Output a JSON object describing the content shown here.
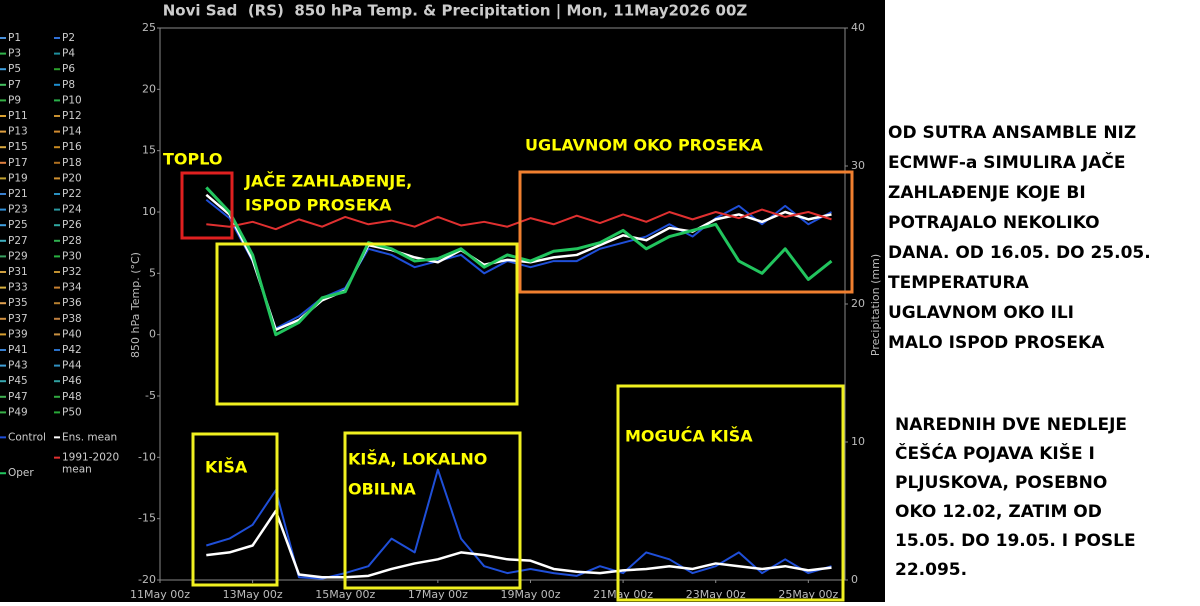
{
  "chart_data": {
    "type": "line",
    "title": "Novi Sad  (RS)  850 hPa Temp. & Precipitation | Mon, 11May2026 00Z",
    "ylabel": "850 hPa Temp. (°C)",
    "y2label": "Precipitation (mm)",
    "grid": false,
    "xlim": [
      0,
      355
    ],
    "xticks": [
      {
        "value": 0,
        "label": "11May 00z"
      },
      {
        "value": 48,
        "label": "13May 00z"
      },
      {
        "value": 96,
        "label": "15May 00z"
      },
      {
        "value": 144,
        "label": "17May 00z"
      },
      {
        "value": 192,
        "label": "19May 00z"
      },
      {
        "value": 240,
        "label": "21May 00z"
      },
      {
        "value": 288,
        "label": "23May 00z"
      },
      {
        "value": 336,
        "label": "25May 00z"
      }
    ],
    "ylim": [
      -20,
      25
    ],
    "yticks": [
      -20,
      -15,
      -10,
      -5,
      0,
      5,
      10,
      15,
      20,
      25
    ],
    "y2lim": [
      0,
      40
    ],
    "y2ticks": [
      0,
      10,
      20,
      30,
      40
    ],
    "x": [
      24,
      36,
      48,
      60,
      72,
      84,
      96,
      108,
      120,
      132,
      144,
      156,
      168,
      180,
      192,
      204,
      216,
      228,
      240,
      252,
      264,
      276,
      288,
      300,
      312,
      324,
      336,
      348
    ],
    "members": [
      {
        "name": "P1",
        "color": "#4a90d9"
      },
      {
        "name": "P2",
        "color": "#2f6fd6"
      },
      {
        "name": "P3",
        "color": "#31b44b"
      },
      {
        "name": "P4",
        "color": "#1e8f9e"
      },
      {
        "name": "P5",
        "color": "#3fa0e0"
      },
      {
        "name": "P6",
        "color": "#2ca02c"
      },
      {
        "name": "P7",
        "color": "#44c060"
      },
      {
        "name": "P8",
        "color": "#1f8fd0"
      },
      {
        "name": "P9",
        "color": "#35b045"
      },
      {
        "name": "P10",
        "color": "#2ab04a"
      },
      {
        "name": "P11",
        "color": "#d9a030"
      },
      {
        "name": "P12",
        "color": "#c89030"
      },
      {
        "name": "P13",
        "color": "#e0a040"
      },
      {
        "name": "P14",
        "color": "#d08a30"
      },
      {
        "name": "P15",
        "color": "#d9a840"
      },
      {
        "name": "P16",
        "color": "#c88a20"
      },
      {
        "name": "P17",
        "color": "#e08040"
      },
      {
        "name": "P18",
        "color": "#b07020"
      },
      {
        "name": "P19",
        "color": "#c0a030"
      },
      {
        "name": "P20",
        "color": "#d09030"
      },
      {
        "name": "P21",
        "color": "#3a80d0"
      },
      {
        "name": "P22",
        "color": "#2a90c0"
      },
      {
        "name": "P23",
        "color": "#3090d8"
      },
      {
        "name": "P24",
        "color": "#2a98a0"
      },
      {
        "name": "P25",
        "color": "#40a0e0"
      },
      {
        "name": "P26",
        "color": "#30a8a0"
      },
      {
        "name": "P27",
        "color": "#40b0c0"
      },
      {
        "name": "P28",
        "color": "#30b050"
      },
      {
        "name": "P29",
        "color": "#38a060"
      },
      {
        "name": "P30",
        "color": "#28b040"
      },
      {
        "name": "P31",
        "color": "#d0a040"
      },
      {
        "name": "P32",
        "color": "#c09030"
      },
      {
        "name": "P33",
        "color": "#d8b040"
      },
      {
        "name": "P34",
        "color": "#c88030"
      },
      {
        "name": "P35",
        "color": "#e0a050"
      },
      {
        "name": "P36",
        "color": "#b88030"
      },
      {
        "name": "P37",
        "color": "#d09040"
      },
      {
        "name": "P38",
        "color": "#c08040"
      },
      {
        "name": "P39",
        "color": "#d8a030"
      },
      {
        "name": "P40",
        "color": "#c89040"
      },
      {
        "name": "P41",
        "color": "#3880d0"
      },
      {
        "name": "P42",
        "color": "#2a70c8"
      },
      {
        "name": "P43",
        "color": "#40a0d8"
      },
      {
        "name": "P44",
        "color": "#3090c0"
      },
      {
        "name": "P45",
        "color": "#38a8b0"
      },
      {
        "name": "P46",
        "color": "#30a0a0"
      },
      {
        "name": "P47",
        "color": "#40b050"
      },
      {
        "name": "P48",
        "color": "#30a840"
      },
      {
        "name": "P49",
        "color": "#38b048"
      },
      {
        "name": "P50",
        "color": "#28a838"
      }
    ],
    "series": [
      {
        "name": "Control",
        "color": "#1f4fd8",
        "values": [
          11.0,
          9.5,
          6.0,
          0.5,
          1.5,
          3.0,
          3.8,
          7.0,
          6.5,
          5.5,
          6.0,
          6.5,
          5.0,
          6.0,
          5.5,
          6.0,
          6.0,
          7.0,
          7.5,
          8.0,
          9.0,
          8.0,
          9.5,
          10.5,
          9.0,
          10.5,
          9.0,
          10.0
        ]
      },
      {
        "name": "Ens. mean",
        "color": "#ffffff",
        "values": [
          11.4,
          9.8,
          6.1,
          0.4,
          1.2,
          2.8,
          3.6,
          7.3,
          6.9,
          6.3,
          5.9,
          6.9,
          5.7,
          6.1,
          5.9,
          6.3,
          6.5,
          7.3,
          8.1,
          7.7,
          8.7,
          8.4,
          9.4,
          9.8,
          9.2,
          10.0,
          9.4,
          9.8
        ]
      },
      {
        "name": "1991-2020 mean",
        "color": "#e03030",
        "values": [
          9.0,
          8.8,
          9.2,
          8.6,
          9.4,
          8.8,
          9.6,
          9.0,
          9.3,
          8.8,
          9.6,
          8.9,
          9.2,
          8.8,
          9.5,
          9.0,
          9.7,
          9.1,
          9.8,
          9.2,
          10.0,
          9.4,
          10.0,
          9.5,
          10.2,
          9.6,
          10.0,
          9.4
        ]
      },
      {
        "name": "Oper",
        "color": "#22c55e",
        "values": [
          12.0,
          10.0,
          6.5,
          0.0,
          1.0,
          3.0,
          3.5,
          7.5,
          7.0,
          6.0,
          6.2,
          7.0,
          5.5,
          6.5,
          6.0,
          6.8,
          7.0,
          7.5,
          8.5,
          7.0,
          8.0,
          8.5,
          9.0,
          6.0,
          5.0,
          7.0,
          4.5,
          6.0
        ]
      },
      {
        "axis": "y2",
        "color": "#1f4fd8",
        "values": [
          2.5,
          3.0,
          4.0,
          6.5,
          0.2,
          0.1,
          0.5,
          1.0,
          3.0,
          2.0,
          8.0,
          3.0,
          1.0,
          0.5,
          0.8,
          0.5,
          0.3,
          1.0,
          0.5,
          2.0,
          1.5,
          0.5,
          1.0,
          2.0,
          0.5,
          1.5,
          0.5,
          1.0
        ]
      },
      {
        "axis": "y2",
        "color": "#ffffff",
        "values": [
          1.8,
          2.0,
          2.5,
          5.0,
          0.4,
          0.2,
          0.2,
          0.3,
          0.8,
          1.2,
          1.5,
          2.0,
          1.8,
          1.5,
          1.4,
          0.8,
          0.6,
          0.5,
          0.7,
          0.8,
          1.0,
          0.8,
          1.2,
          1.0,
          0.8,
          1.0,
          0.7,
          0.9
        ]
      }
    ]
  },
  "annotations": {
    "toplo": "TOPLO",
    "cooling": [
      "JAČE ZAHLAĐENJE,",
      "ISPOD PROSEKA"
    ],
    "average": "UGLAVNOM OKO PROSEKA",
    "rain1": "KIŠA",
    "rain2": [
      "KIŠA, LOKALNO",
      "OBILNA"
    ],
    "rain3": "MOGUĆA KIŠA"
  },
  "notes": {
    "paragraph1": [
      "OD SUTRA ANSAMBLE NIZ",
      "ECMWF-a SIMULIRA JAČE",
      "ZAHLAĐENJE KOJE BI",
      "POTRAJALO NEKOLIKO",
      "DANA. OD 16.05. DO 25.05.",
      "TEMPERATURA",
      "UGLAVNOM OKO ILI",
      "MALO ISPOD PROSEKA"
    ],
    "paragraph2": [
      "NAREDNIH DVE NEDLEJE",
      "ČEŠĆA POJAVA KIŠE I",
      "PLJUSKOVA, POSEBNO",
      "OKO 12.02, ZATIM OD",
      "15.05. DO 19.05. I POSLE",
      "22.095."
    ]
  }
}
